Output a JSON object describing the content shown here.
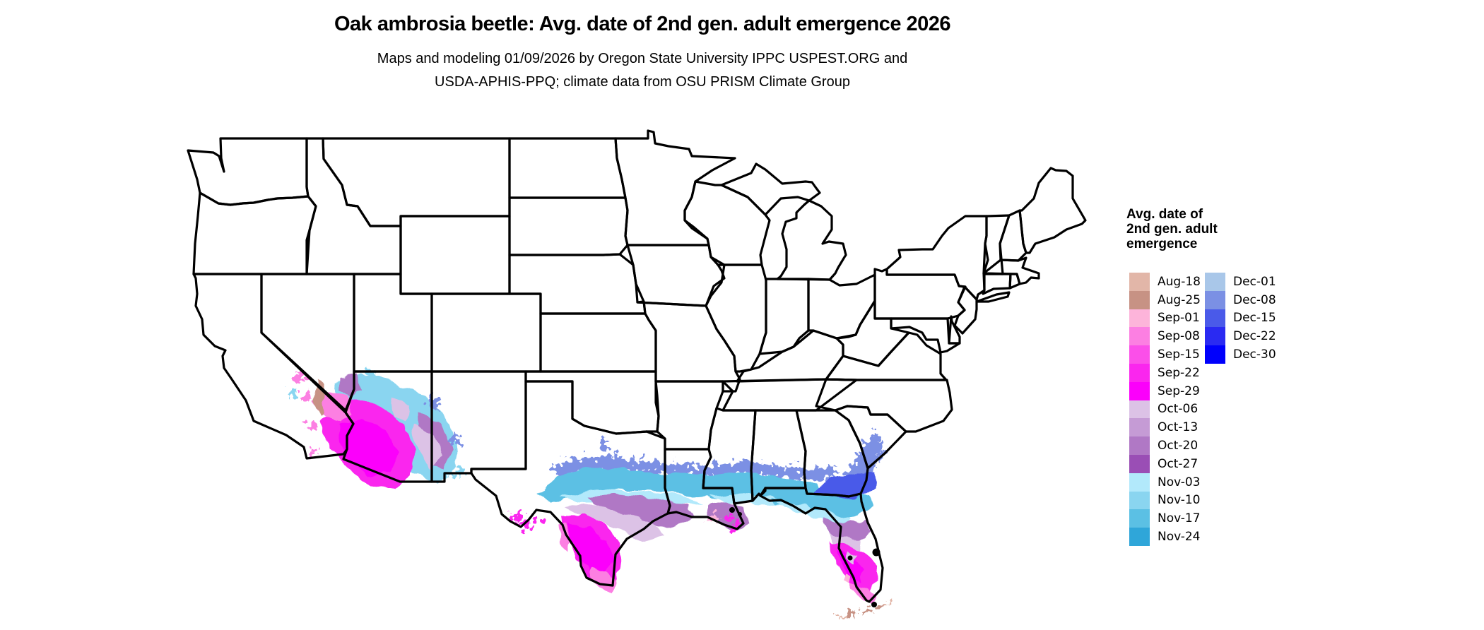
{
  "header": {
    "title": "Oak ambrosia beetle: Avg. date of 2nd gen. adult emergence 2026",
    "subtitle_line1": "Maps and modeling 01/09/2026 by Oregon State University IPPC USPEST.ORG and",
    "subtitle_line2": "USDA-APHIS-PPQ; climate data from OSU PRISM Climate Group"
  },
  "legend": {
    "title_lines": [
      "Avg. date of",
      "2nd gen. adult",
      "emergence"
    ],
    "column1": [
      {
        "label": "Aug-18",
        "color": "#e2b6a8"
      },
      {
        "label": "Aug-25",
        "color": "#c79284"
      },
      {
        "label": "Sep-01",
        "color": "#fdb4da"
      },
      {
        "label": "Sep-08",
        "color": "#fc7fe2"
      },
      {
        "label": "Sep-15",
        "color": "#fb4fe9"
      },
      {
        "label": "Sep-22",
        "color": "#fa26ee"
      },
      {
        "label": "Sep-29",
        "color": "#fb00fb"
      },
      {
        "label": "Oct-06",
        "color": "#dcc2e6"
      },
      {
        "label": "Oct-13",
        "color": "#c59bd5"
      },
      {
        "label": "Oct-20",
        "color": "#b078c5"
      },
      {
        "label": "Oct-27",
        "color": "#9a4eb5"
      },
      {
        "label": "Nov-03",
        "color": "#b2e9fb"
      },
      {
        "label": "Nov-10",
        "color": "#8ad5f0"
      },
      {
        "label": "Nov-17",
        "color": "#5bc0e4"
      },
      {
        "label": "Nov-24",
        "color": "#2fa6d9"
      }
    ],
    "column2": [
      {
        "label": "Dec-01",
        "color": "#a9c7e9"
      },
      {
        "label": "Dec-08",
        "color": "#7b90e4"
      },
      {
        "label": "Dec-15",
        "color": "#4a5ae9"
      },
      {
        "label": "Dec-22",
        "color": "#2a2af2"
      },
      {
        "label": "Dec-30",
        "color": "#0000fc"
      }
    ]
  },
  "map": {
    "region": "Contiguous United States",
    "type": "raster emergence-date map over state outlines",
    "colored_areas": [
      {
        "area": "Southeastern California / southern Arizona deserts",
        "dates": "Sep-01 to Nov-24 with small Aug-25 patch"
      },
      {
        "area": "Southern Texas and Rio Grande valley",
        "dates": "Sep-08 to Dec-15, earliest near the coast and tip"
      },
      {
        "area": "Gulf Coast: Louisiana, Mississippi, Alabama",
        "dates": "Nov-03 to Dec-15; Oct and Sep patches at the Mississippi delta"
      },
      {
        "area": "Florida peninsula",
        "dates": "Sep-01 to Dec-15; Aug-18 and Aug-25 in the Keys"
      },
      {
        "area": "Coastal Georgia / South Carolina",
        "dates": "Dec-01 to Dec-15 speckle"
      }
    ]
  }
}
